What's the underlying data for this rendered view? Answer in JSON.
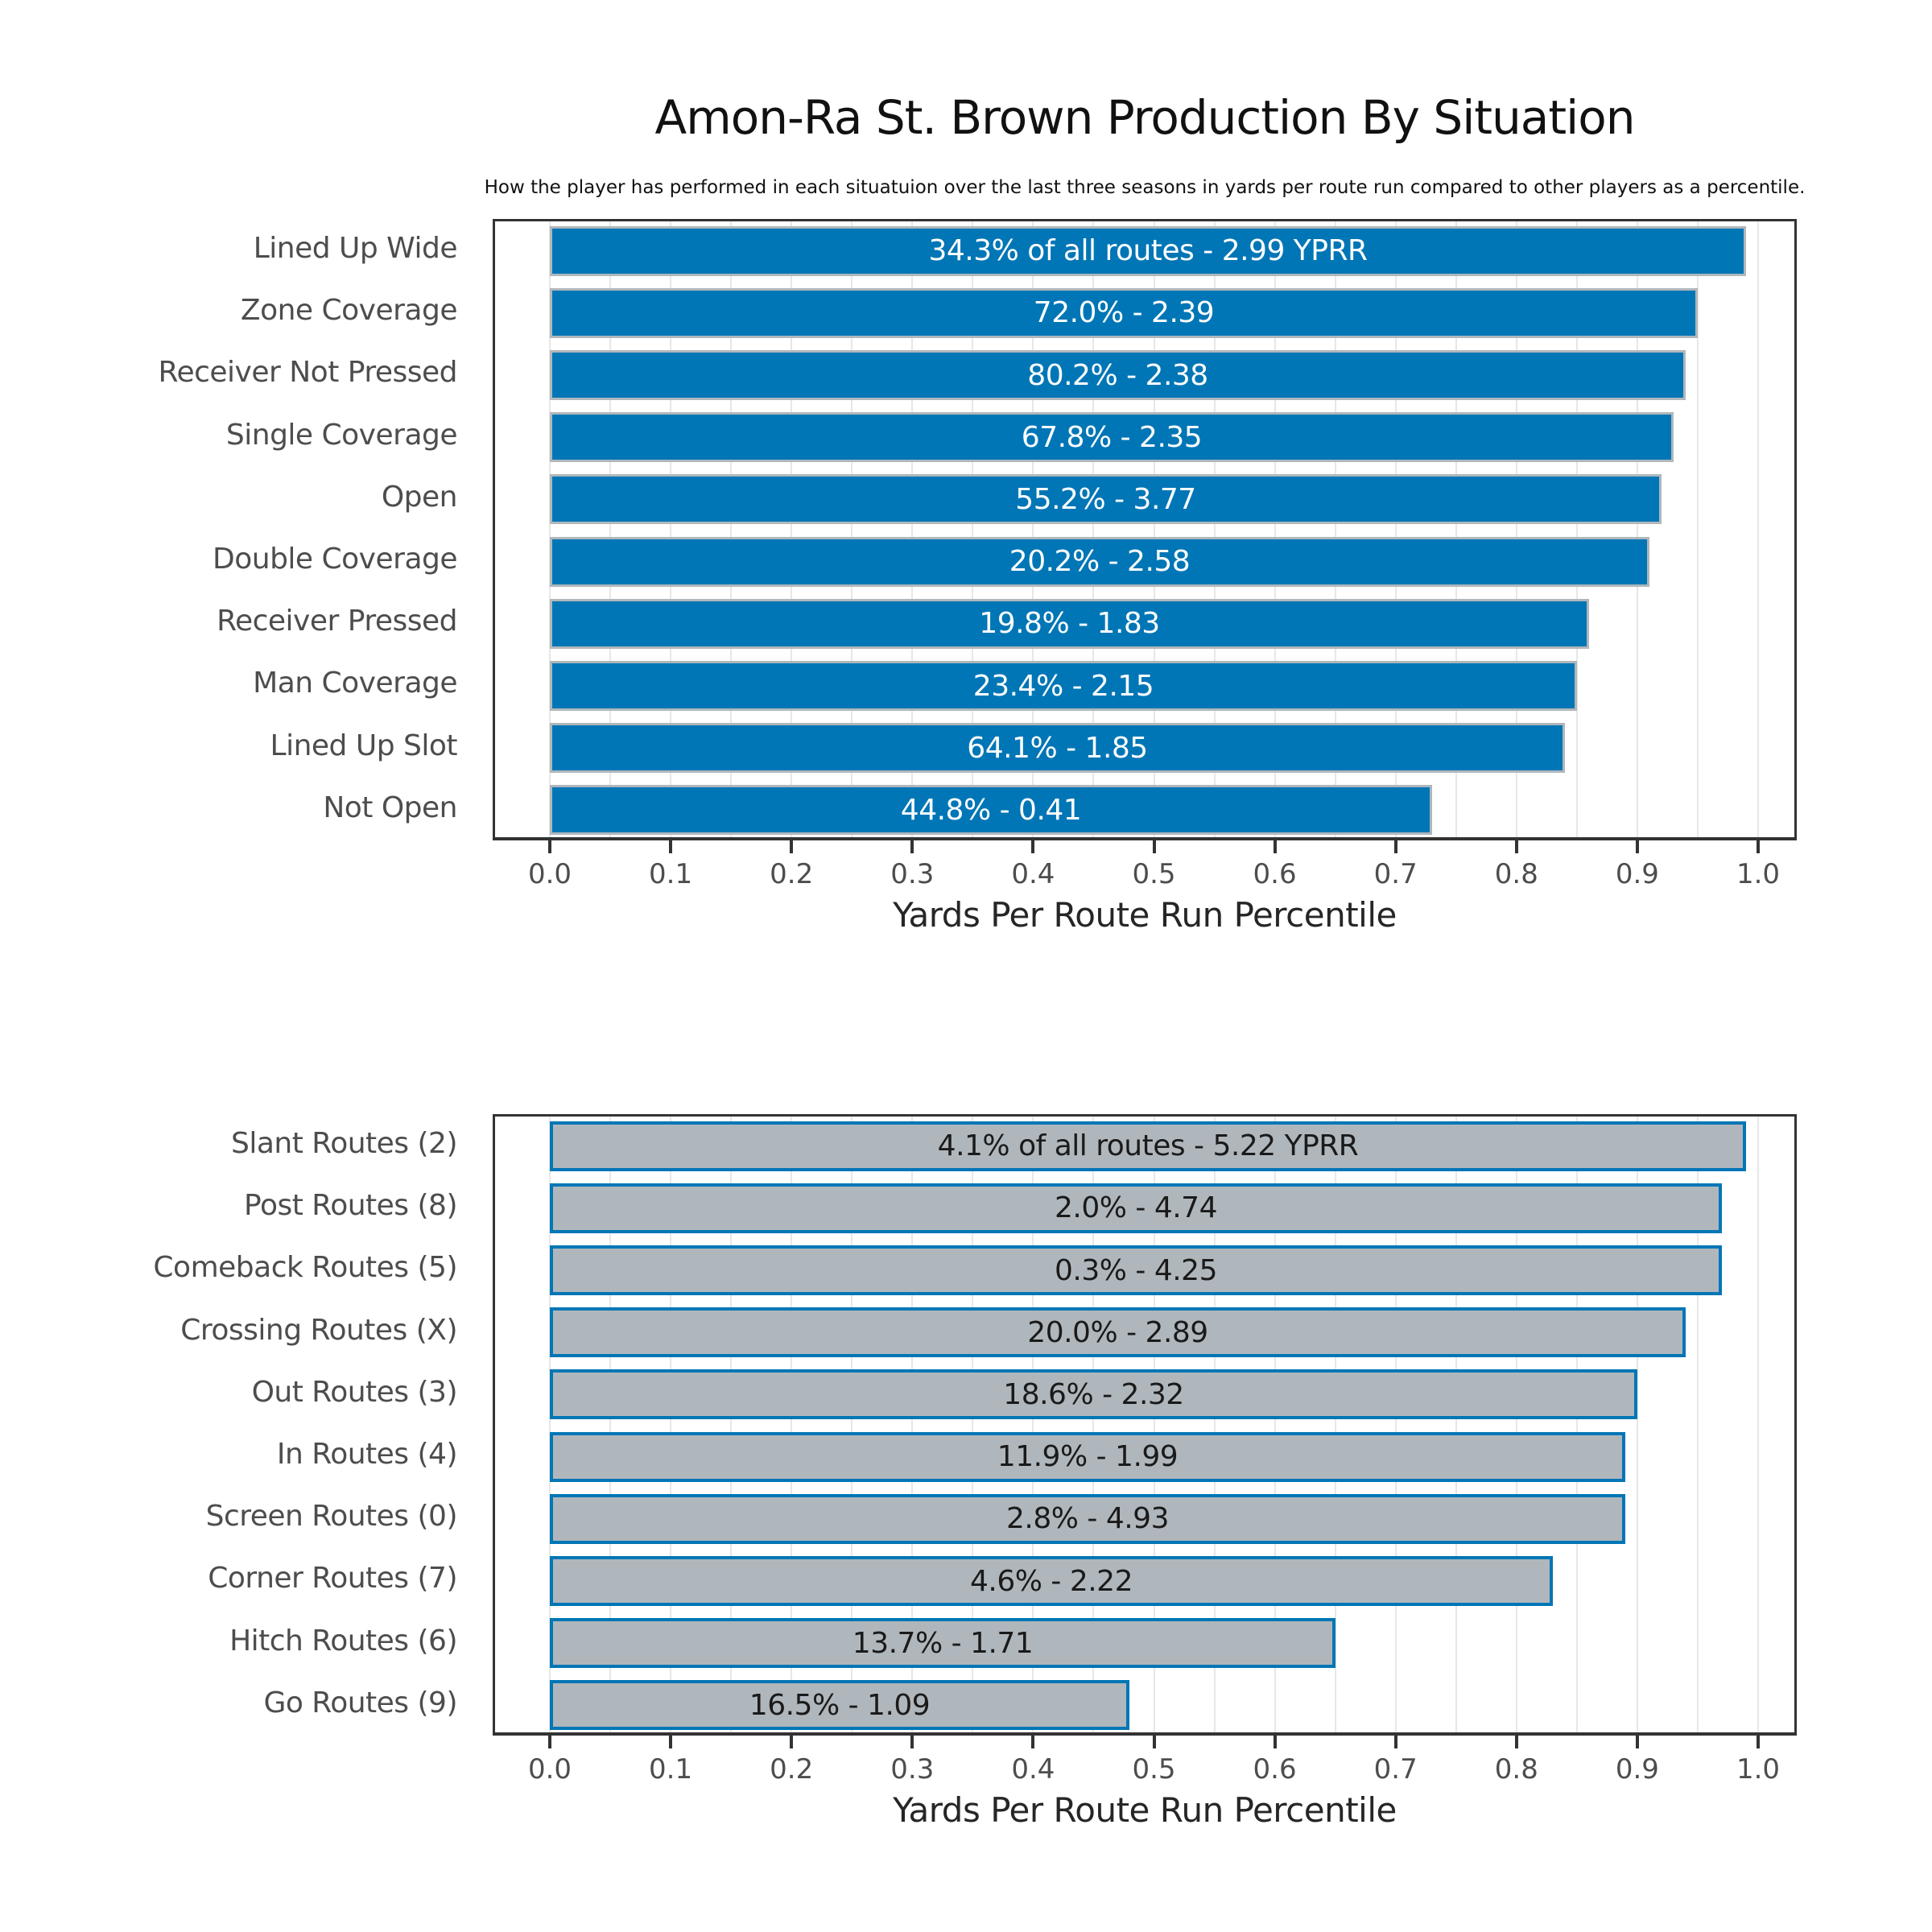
{
  "title": "Amon-Ra St. Brown Production By Situation",
  "subtitle": "How the player has performed in each situatuion over the last three seasons in yards per route run compared to other players as a percentile.",
  "colors": {
    "honolulu_blue": "#0076B6",
    "silver": "#B0B7BC",
    "grid": "#E7E7E7",
    "spine": "#333333",
    "axis_text": "#4D4D4D"
  },
  "chart_data": [
    {
      "type": "bar",
      "orientation": "horizontal",
      "xlabel": "Yards Per Route Run Percentile",
      "xlim": [
        -0.047,
        1.032
      ],
      "xticks": [
        0.0,
        0.1,
        0.2,
        0.3,
        0.4,
        0.5,
        0.6,
        0.7,
        0.8,
        0.9,
        1.0
      ],
      "grid_step": 0.05,
      "grid": true,
      "legend": "none",
      "bar_fill": "#0076B6",
      "bar_edge": "#B0B7BC",
      "bar_label_color": "#FFFFFF",
      "categories": [
        "Lined Up Wide",
        "Zone Coverage",
        "Receiver Not Pressed",
        "Single Coverage",
        "Open",
        "Double Coverage",
        "Receiver Pressed",
        "Man Coverage",
        "Lined Up Slot",
        "Not Open"
      ],
      "values": [
        0.99,
        0.95,
        0.94,
        0.93,
        0.92,
        0.91,
        0.86,
        0.85,
        0.84,
        0.73
      ],
      "route_share_pct": [
        34.3,
        72.0,
        80.2,
        67.8,
        55.2,
        20.2,
        19.8,
        23.4,
        64.1,
        44.8
      ],
      "yprr": [
        2.99,
        2.39,
        2.38,
        2.35,
        3.77,
        2.58,
        1.83,
        2.15,
        1.85,
        0.41
      ],
      "bar_labels": [
        "34.3% of all routes - 2.99 YPRR",
        "72.0% - 2.39",
        "80.2% - 2.38",
        "67.8% - 2.35",
        "55.2% - 3.77",
        "20.2% - 2.58",
        "19.8% - 1.83",
        "23.4% - 2.15",
        "64.1% - 1.85",
        "44.8% - 0.41"
      ]
    },
    {
      "type": "bar",
      "orientation": "horizontal",
      "xlabel": "Yards Per Route Run Percentile",
      "xlim": [
        -0.047,
        1.032
      ],
      "xticks": [
        0.0,
        0.1,
        0.2,
        0.3,
        0.4,
        0.5,
        0.6,
        0.7,
        0.8,
        0.9,
        1.0
      ],
      "grid_step": 0.05,
      "grid": true,
      "legend": "none",
      "bar_fill": "#B0B7BC",
      "bar_edge": "#0076B6",
      "bar_label_color": "#1A1A1A",
      "categories": [
        "Slant Routes (2)",
        "Post Routes (8)",
        "Comeback Routes (5)",
        "Crossing Routes (X)",
        "Out Routes (3)",
        "In Routes (4)",
        "Screen Routes (0)",
        "Corner Routes (7)",
        "Hitch Routes (6)",
        "Go Routes (9)"
      ],
      "values": [
        0.99,
        0.97,
        0.97,
        0.94,
        0.9,
        0.89,
        0.89,
        0.83,
        0.65,
        0.48
      ],
      "route_share_pct": [
        4.1,
        2.0,
        0.3,
        20.0,
        18.6,
        11.9,
        2.8,
        4.6,
        13.7,
        16.5
      ],
      "yprr": [
        5.22,
        4.74,
        4.25,
        2.89,
        2.32,
        1.99,
        4.93,
        2.22,
        1.71,
        1.09
      ],
      "bar_labels": [
        "4.1% of all routes - 5.22 YPRR",
        "2.0% - 4.74",
        "0.3% - 4.25",
        "20.0% - 2.89",
        "18.6% - 2.32",
        "11.9% - 1.99",
        "2.8% - 4.93",
        "4.6% - 2.22",
        "13.7% - 1.71",
        "16.5% - 1.09"
      ]
    }
  ]
}
